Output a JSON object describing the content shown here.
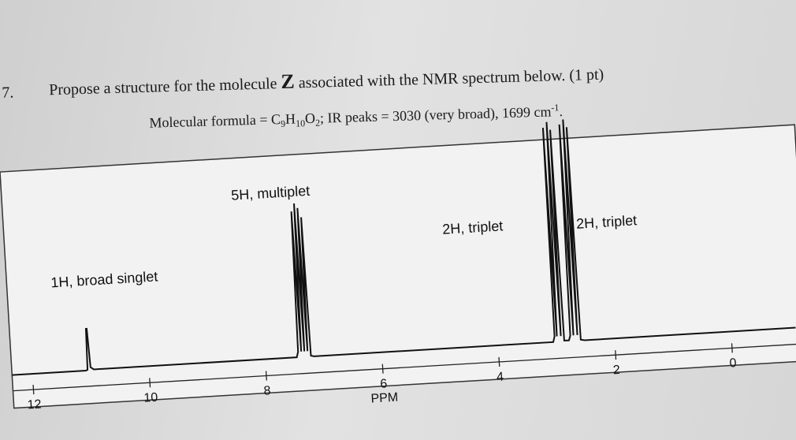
{
  "question": {
    "number": "7.",
    "text_before": "Propose a structure for the molecule",
    "molecule": "Z",
    "text_after": "associated with the NMR spectrum below. (1 pt)",
    "formula_line": [
      "Molecular formula = C",
      "9",
      "H",
      "10",
      "O",
      "2",
      "; IR peaks = 3030 (very broad), 1699 cm",
      "-1",
      "."
    ]
  },
  "spectrum": {
    "peak_labels": [
      "1H, broad singlet",
      "5H, multiplet",
      "2H, triplet",
      "2H, triplet"
    ],
    "axis_labels": [
      "12",
      "10",
      "8",
      "6",
      "4",
      "2",
      "0"
    ],
    "axis_title": "PPM"
  }
}
